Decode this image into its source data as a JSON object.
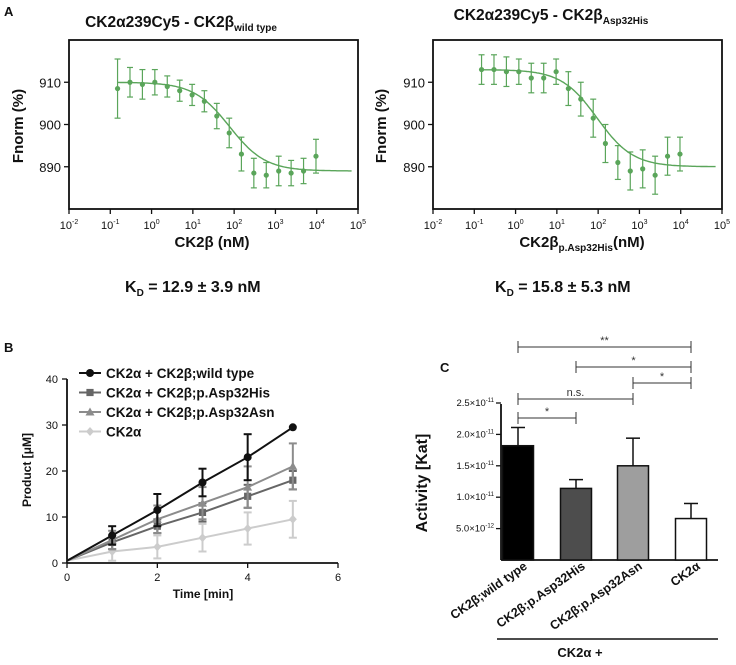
{
  "panel_letters": {
    "a": "A",
    "b": "B",
    "c": "C"
  },
  "kd": {
    "left": {
      "k": "K",
      "sub": "D",
      "rest": " = 12.9 ± 3.9 nM"
    },
    "right": {
      "k": "K",
      "sub": "D",
      "rest": " = 15.8 ± 5.3 nM"
    }
  },
  "colors": {
    "mst": "#5aa55a",
    "wild_type": "#111111",
    "asp32his": "#666666",
    "asp32asn": "#8c8c8c",
    "ck2a": "#cccccc"
  },
  "chart_data": [
    {
      "id": "A-left",
      "type": "scatter",
      "title_main": "CK2α239Cy5 - CK2β",
      "title_sub": "wild type",
      "xlabel": "CK2β (nM)",
      "xlabel_sub": "",
      "xlabel_tail": "",
      "ylabel": "Fnorm (%)",
      "x_scale": "log",
      "xlim": [
        0.01,
        100000
      ],
      "ylim": [
        880,
        920
      ],
      "x_ticks": [
        {
          "v": 0.01,
          "base": "10",
          "exp": "-2"
        },
        {
          "v": 0.1,
          "base": "10",
          "exp": "-1"
        },
        {
          "v": 1,
          "base": "10",
          "exp": "0"
        },
        {
          "v": 10,
          "base": "10",
          "exp": "1"
        },
        {
          "v": 100,
          "base": "10",
          "exp": "2"
        },
        {
          "v": 1000,
          "base": "10",
          "exp": "3"
        },
        {
          "v": 10000,
          "base": "10",
          "exp": "4"
        },
        {
          "v": 100000,
          "base": "10",
          "exp": "5"
        }
      ],
      "y_ticks": [
        {
          "v": 890,
          "label": "890"
        },
        {
          "v": 900,
          "label": "900"
        },
        {
          "v": 910,
          "label": "910"
        }
      ],
      "points": [
        {
          "x": 0.15,
          "y": 908.5,
          "err": 7.0
        },
        {
          "x": 0.3,
          "y": 910.0,
          "err": 3.5
        },
        {
          "x": 0.6,
          "y": 909.5,
          "err": 3.5
        },
        {
          "x": 1.2,
          "y": 910.0,
          "err": 3.0
        },
        {
          "x": 2.4,
          "y": 909.0,
          "err": 2.5
        },
        {
          "x": 4.8,
          "y": 908.0,
          "err": 2.5
        },
        {
          "x": 9.6,
          "y": 907.0,
          "err": 2.5
        },
        {
          "x": 19,
          "y": 905.5,
          "err": 2.5
        },
        {
          "x": 38,
          "y": 902.0,
          "err": 3.0
        },
        {
          "x": 76,
          "y": 898.0,
          "err": 3.5
        },
        {
          "x": 150,
          "y": 893.0,
          "err": 4.0
        },
        {
          "x": 300,
          "y": 888.5,
          "err": 3.5
        },
        {
          "x": 600,
          "y": 888.0,
          "err": 3.0
        },
        {
          "x": 1200,
          "y": 889.0,
          "err": 3.5
        },
        {
          "x": 2400,
          "y": 888.5,
          "err": 3.0
        },
        {
          "x": 4800,
          "y": 889.0,
          "err": 3.0
        },
        {
          "x": 9600,
          "y": 892.5,
          "err": 4.0
        }
      ],
      "fit": {
        "top": 910.0,
        "bottom": 889.0,
        "kd": 12.9,
        "target_nm": 100
      }
    },
    {
      "id": "A-right",
      "type": "scatter",
      "title_main": "CK2α239Cy5 - CK2β",
      "title_sub": "Asp32His",
      "xlabel": "CK2β",
      "xlabel_sub": "p.Asp32His",
      "xlabel_tail": "(nM)",
      "ylabel": "Fnorm (%)",
      "x_scale": "log",
      "xlim": [
        0.01,
        100000
      ],
      "ylim": [
        880,
        920
      ],
      "x_ticks": [
        {
          "v": 0.01,
          "base": "10",
          "exp": "-2"
        },
        {
          "v": 0.1,
          "base": "10",
          "exp": "-1"
        },
        {
          "v": 1,
          "base": "10",
          "exp": "0"
        },
        {
          "v": 10,
          "base": "10",
          "exp": "1"
        },
        {
          "v": 100,
          "base": "10",
          "exp": "2"
        },
        {
          "v": 1000,
          "base": "10",
          "exp": "3"
        },
        {
          "v": 10000,
          "base": "10",
          "exp": "4"
        },
        {
          "v": 100000,
          "base": "10",
          "exp": "5"
        }
      ],
      "y_ticks": [
        {
          "v": 890,
          "label": "890"
        },
        {
          "v": 900,
          "label": "900"
        },
        {
          "v": 910,
          "label": "910"
        }
      ],
      "points": [
        {
          "x": 0.15,
          "y": 913.0,
          "err": 3.5
        },
        {
          "x": 0.3,
          "y": 913.0,
          "err": 3.5
        },
        {
          "x": 0.6,
          "y": 912.5,
          "err": 3.5
        },
        {
          "x": 1.2,
          "y": 912.5,
          "err": 3.0
        },
        {
          "x": 2.4,
          "y": 911.0,
          "err": 3.5
        },
        {
          "x": 4.8,
          "y": 911.0,
          "err": 3.5
        },
        {
          "x": 9.6,
          "y": 912.5,
          "err": 3.0
        },
        {
          "x": 19,
          "y": 908.5,
          "err": 4.0
        },
        {
          "x": 38,
          "y": 906.0,
          "err": 4.0
        },
        {
          "x": 76,
          "y": 901.5,
          "err": 4.5
        },
        {
          "x": 150,
          "y": 895.5,
          "err": 4.5
        },
        {
          "x": 300,
          "y": 891.0,
          "err": 4.0
        },
        {
          "x": 600,
          "y": 889.0,
          "err": 4.5
        },
        {
          "x": 1200,
          "y": 889.5,
          "err": 4.5
        },
        {
          "x": 2400,
          "y": 888.0,
          "err": 4.5
        },
        {
          "x": 4800,
          "y": 892.5,
          "err": 4.5
        },
        {
          "x": 9600,
          "y": 893.0,
          "err": 4.0
        }
      ],
      "fit": {
        "top": 913.0,
        "bottom": 890.0,
        "kd": 15.8,
        "target_nm": 100
      }
    },
    {
      "id": "B",
      "type": "line",
      "xlabel": "Time [min]",
      "ylabel": "Product [μM]",
      "xlim": [
        0,
        6
      ],
      "ylim": [
        0,
        40
      ],
      "x_ticks": [
        0,
        2,
        4,
        6
      ],
      "y_ticks": [
        0,
        10,
        20,
        30,
        40
      ],
      "series": [
        {
          "name": "CK2α + CK2β;wild type",
          "marker": "circle",
          "color_key": "wild_type",
          "x": [
            0,
            1,
            2,
            3,
            4,
            5
          ],
          "values": [
            0.5,
            6.0,
            11.5,
            17.5,
            23.0,
            29.5
          ],
          "err": [
            0,
            2.0,
            3.5,
            3.0,
            5.0,
            0
          ]
        },
        {
          "name": "CK2α + CK2β;p.Asp32His",
          "marker": "square",
          "color_key": "asp32his",
          "x": [
            0,
            1,
            2,
            3,
            4,
            5
          ],
          "values": [
            0.5,
            4.5,
            8.0,
            11.0,
            14.5,
            18.0
          ],
          "err": [
            0,
            1.5,
            1.5,
            2.0,
            2.5,
            2.0
          ]
        },
        {
          "name": "CK2α + CK2β;p.Asp32Asn",
          "marker": "triangle",
          "color_key": "asp32asn",
          "x": [
            0,
            1,
            2,
            3,
            4,
            5
          ],
          "values": [
            0.5,
            5.0,
            9.5,
            13.0,
            16.5,
            21.0
          ],
          "err": [
            0,
            2.0,
            3.0,
            3.5,
            4.5,
            5.0
          ]
        },
        {
          "name": "CK2α",
          "marker": "diamond",
          "color_key": "ck2a",
          "x": [
            0,
            1,
            2,
            3,
            4,
            5
          ],
          "values": [
            0.5,
            2.5,
            3.5,
            5.5,
            7.5,
            9.5
          ],
          "err": [
            0,
            2.0,
            2.5,
            3.0,
            3.5,
            4.0
          ]
        }
      ]
    },
    {
      "id": "C",
      "type": "bar",
      "ylabel": "Activity [Kat]",
      "ylim": [
        0,
        2.5e-11
      ],
      "y_ticks": [
        {
          "v": 5e-12,
          "base": "5.0×10",
          "exp": "-12"
        },
        {
          "v": 1e-11,
          "base": "1.0×10",
          "exp": "-11"
        },
        {
          "v": 1.5e-11,
          "base": "1.5×10",
          "exp": "-11"
        },
        {
          "v": 2e-11,
          "base": "2.0×10",
          "exp": "-11"
        },
        {
          "v": 2.5e-11,
          "base": "2.5×10",
          "exp": "-11"
        }
      ],
      "categories": [
        "CK2β;wild type",
        "CK2β;p.Asp32His",
        "CK2β;p.Asp32Asn",
        "CK2α"
      ],
      "values": [
        1.82e-11,
        1.14e-11,
        1.5e-11,
        6.6e-12
      ],
      "errors": [
        2.9e-12,
        1.4e-12,
        4.4e-12,
        2.4e-12
      ],
      "bar_fills": [
        "#000000",
        "#4d4d4d",
        "#9e9e9e",
        "#ffffff"
      ],
      "group_label": "CK2α +",
      "significance": [
        {
          "from": 0,
          "to": 3,
          "label": "**"
        },
        {
          "from": 1,
          "to": 3,
          "label": "*"
        },
        {
          "from": 2,
          "to": 3,
          "label": "*"
        },
        {
          "from": 0,
          "to": 2,
          "label": "n.s."
        },
        {
          "from": 0,
          "to": 1,
          "label": "*"
        }
      ]
    }
  ]
}
